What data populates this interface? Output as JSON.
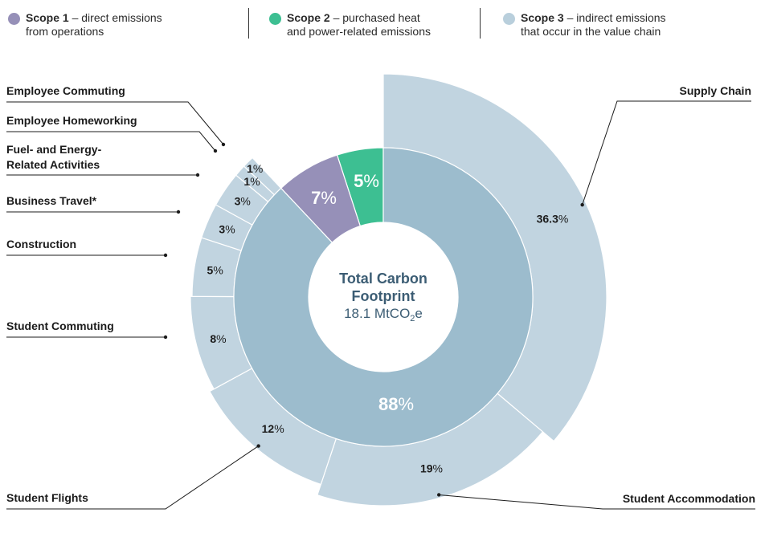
{
  "legend": [
    {
      "title": "Scope 1",
      "desc_line1": "– direct emissions",
      "desc_line2": "from operations",
      "color": "#9690b8"
    },
    {
      "title": "Scope 2",
      "desc_line1": "– purchased heat",
      "desc_line2": "and power-related emissions",
      "color": "#3dbf92"
    },
    {
      "title": "Scope 3",
      "desc_line1": "– indirect emissions",
      "desc_line2": "that occur in the value chain",
      "color": "#b9cfdc"
    }
  ],
  "center": {
    "title_line1": "Total Carbon",
    "title_line2": "Footprint",
    "value": "18.1 MtCO",
    "value_sub": "2",
    "value_suffix": "e"
  },
  "colors": {
    "scope1": "#9690b8",
    "scope2": "#3dbf92",
    "scope3_inner": "#9cbccd",
    "scope3_outer": "#c1d4e0",
    "title": "#3c5d74"
  },
  "chart_data": {
    "type": "pie",
    "title": "Total Carbon Footprint",
    "inner_ring": [
      {
        "name": "Scope 2",
        "value": 5,
        "label": "5"
      },
      {
        "name": "Scope 1",
        "value": 7,
        "label": "7"
      },
      {
        "name": "Scope 3",
        "value": 88,
        "label": "88"
      }
    ],
    "outer_ring": [
      {
        "name": "Supply Chain",
        "value": 36.3,
        "label": "36.3"
      },
      {
        "name": "Student Accommodation",
        "value": 19,
        "label": "19"
      },
      {
        "name": "Student Flights",
        "value": 12,
        "label": "12"
      },
      {
        "name": "Student Commuting",
        "value": 8,
        "label": "8"
      },
      {
        "name": "Construction",
        "value": 5,
        "label": "5"
      },
      {
        "name": "Business Travel*",
        "value": 3,
        "label": "3"
      },
      {
        "name": "Fuel- and Energy-Related Activities",
        "value": 3,
        "label": "3"
      },
      {
        "name": "Employee Homeworking",
        "value": 1,
        "label": "1"
      },
      {
        "name": "Employee Commuting",
        "value": 1,
        "label": "1"
      }
    ],
    "category_labels": {
      "supply_chain": "Supply Chain",
      "student_accommodation": "Student Accommodation",
      "student_flights": "Student Flights",
      "student_commuting": "Student Commuting",
      "construction": "Construction",
      "business_travel": "Business Travel*",
      "fuel_line1": "Fuel- and Energy-",
      "fuel_line2": "Related Activities",
      "employee_homeworking": "Employee Homeworking",
      "employee_commuting": "Employee Commuting"
    },
    "percent_sign": "%"
  }
}
